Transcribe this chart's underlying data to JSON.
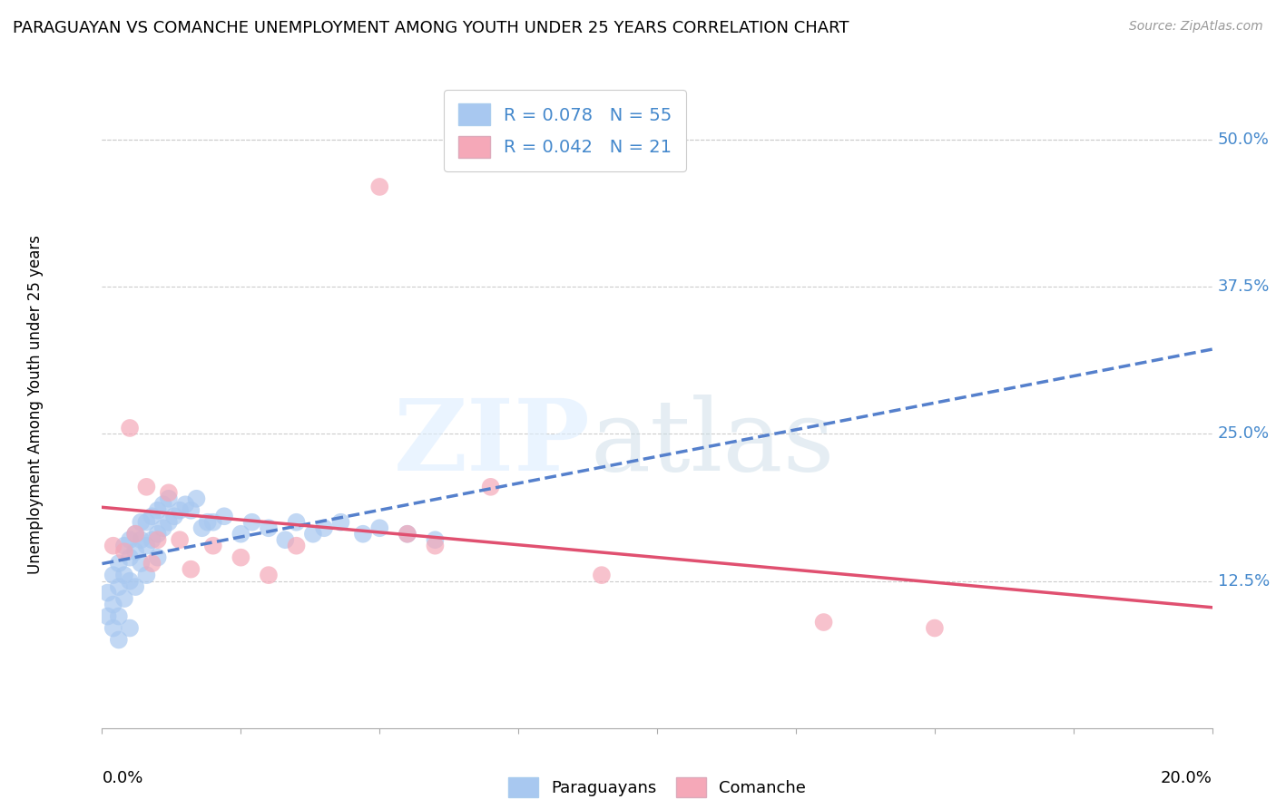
{
  "title": "PARAGUAYAN VS COMANCHE UNEMPLOYMENT AMONG YOUTH UNDER 25 YEARS CORRELATION CHART",
  "source": "Source: ZipAtlas.com",
  "ylabel": "Unemployment Among Youth under 25 years",
  "ytick_labels": [
    "12.5%",
    "25.0%",
    "37.5%",
    "50.0%"
  ],
  "ytick_values": [
    0.125,
    0.25,
    0.375,
    0.5
  ],
  "xlim": [
    0.0,
    0.2
  ],
  "ylim": [
    0.0,
    0.55
  ],
  "legend1_label": "R = 0.078   N = 55",
  "legend2_label": "R = 0.042   N = 21",
  "legend_labels": [
    "Paraguayans",
    "Comanche"
  ],
  "paraguayan_color": "#a8c8f0",
  "comanche_color": "#f5a8b8",
  "trendline1_color": "#5580cc",
  "trendline2_color": "#e05070",
  "paraguayan_x": [
    0.001,
    0.001,
    0.002,
    0.002,
    0.002,
    0.003,
    0.003,
    0.003,
    0.003,
    0.004,
    0.004,
    0.004,
    0.005,
    0.005,
    0.005,
    0.005,
    0.006,
    0.006,
    0.006,
    0.007,
    0.007,
    0.007,
    0.008,
    0.008,
    0.008,
    0.009,
    0.009,
    0.01,
    0.01,
    0.01,
    0.011,
    0.011,
    0.012,
    0.012,
    0.013,
    0.014,
    0.015,
    0.016,
    0.017,
    0.018,
    0.019,
    0.02,
    0.022,
    0.025,
    0.027,
    0.03,
    0.033,
    0.035,
    0.038,
    0.04,
    0.043,
    0.047,
    0.05,
    0.055,
    0.06
  ],
  "paraguayan_y": [
    0.115,
    0.095,
    0.13,
    0.085,
    0.105,
    0.14,
    0.12,
    0.095,
    0.075,
    0.155,
    0.13,
    0.11,
    0.16,
    0.145,
    0.125,
    0.085,
    0.165,
    0.15,
    0.12,
    0.175,
    0.16,
    0.14,
    0.175,
    0.155,
    0.13,
    0.18,
    0.16,
    0.185,
    0.165,
    0.145,
    0.19,
    0.17,
    0.195,
    0.175,
    0.18,
    0.185,
    0.19,
    0.185,
    0.195,
    0.17,
    0.175,
    0.175,
    0.18,
    0.165,
    0.175,
    0.17,
    0.16,
    0.175,
    0.165,
    0.17,
    0.175,
    0.165,
    0.17,
    0.165,
    0.16
  ],
  "comanche_x": [
    0.002,
    0.004,
    0.005,
    0.006,
    0.008,
    0.009,
    0.01,
    0.012,
    0.014,
    0.016,
    0.02,
    0.025,
    0.03,
    0.035,
    0.05,
    0.055,
    0.06,
    0.07,
    0.09,
    0.13,
    0.15
  ],
  "comanche_y": [
    0.155,
    0.15,
    0.255,
    0.165,
    0.205,
    0.14,
    0.16,
    0.2,
    0.16,
    0.135,
    0.155,
    0.145,
    0.13,
    0.155,
    0.46,
    0.165,
    0.155,
    0.205,
    0.13,
    0.09,
    0.085
  ]
}
